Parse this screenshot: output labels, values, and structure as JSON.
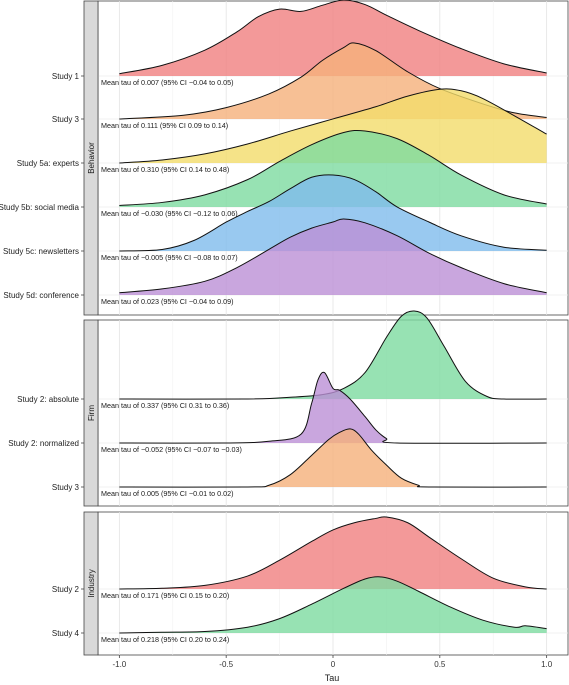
{
  "chart_data": {
    "type": "ridgeline",
    "xlabel": "Tau",
    "xlim": [
      -1.1,
      1.1
    ],
    "x_ticks": [
      "-1.0",
      "-0.5",
      "0",
      "0.5",
      "1.0"
    ],
    "x_tick_values": [
      -1.0,
      -0.5,
      0,
      0.5,
      1.0
    ],
    "grid": true,
    "colors": {
      "red": "#f08080",
      "orange": "#f5b07a",
      "yellow": "#f3dc6a",
      "green": "#7ddba0",
      "blue": "#7fbcec",
      "purple": "#bb90d6"
    },
    "panels": [
      {
        "strip": "Behavior",
        "rows": [
          {
            "label": "Study 1",
            "annotation": "Mean tau of 0.007 (95% CI −0.04 to 0.05)",
            "color": "red",
            "mean": 0.007,
            "density": [
              [
                -1.0,
                0.03
              ],
              [
                -0.8,
                0.14
              ],
              [
                -0.6,
                0.34
              ],
              [
                -0.45,
                0.58
              ],
              [
                -0.35,
                0.78
              ],
              [
                -0.25,
                0.88
              ],
              [
                -0.15,
                0.85
              ],
              [
                -0.05,
                0.93
              ],
              [
                0.05,
                1.0
              ],
              [
                0.15,
                0.94
              ],
              [
                0.25,
                0.8
              ],
              [
                0.4,
                0.6
              ],
              [
                0.6,
                0.36
              ],
              [
                0.8,
                0.16
              ],
              [
                1.0,
                0.04
              ]
            ]
          },
          {
            "label": "Study 3",
            "annotation": "Mean tau of 0.111 (95% CI 0.09 to 0.14)",
            "color": "orange",
            "mean": 0.111,
            "density": [
              [
                -1.0,
                0.0
              ],
              [
                -0.7,
                0.05
              ],
              [
                -0.5,
                0.15
              ],
              [
                -0.3,
                0.33
              ],
              [
                -0.15,
                0.55
              ],
              [
                -0.05,
                0.77
              ],
              [
                0.05,
                0.94
              ],
              [
                0.1,
                1.0
              ],
              [
                0.2,
                0.9
              ],
              [
                0.35,
                0.62
              ],
              [
                0.5,
                0.4
              ],
              [
                0.7,
                0.2
              ],
              [
                0.85,
                0.08
              ],
              [
                1.0,
                0.02
              ]
            ]
          },
          {
            "label": "Study 5a: experts",
            "annotation": "Mean tau of 0.310 (95% CI 0.14 to 0.48)",
            "color": "yellow",
            "mean": 0.31,
            "density": [
              [
                -1.0,
                0.0
              ],
              [
                -0.8,
                0.04
              ],
              [
                -0.6,
                0.12
              ],
              [
                -0.4,
                0.25
              ],
              [
                -0.2,
                0.42
              ],
              [
                0.0,
                0.58
              ],
              [
                0.2,
                0.74
              ],
              [
                0.35,
                0.88
              ],
              [
                0.5,
                0.97
              ],
              [
                0.6,
                0.95
              ],
              [
                0.7,
                0.85
              ],
              [
                0.85,
                0.62
              ],
              [
                1.0,
                0.38
              ]
            ]
          },
          {
            "label": "Study 5b: social media",
            "annotation": "Mean tau of −0.030 (95% CI −0.12 to 0.06)",
            "color": "green",
            "mean": -0.03,
            "density": [
              [
                -1.0,
                0.02
              ],
              [
                -0.8,
                0.06
              ],
              [
                -0.6,
                0.16
              ],
              [
                -0.4,
                0.36
              ],
              [
                -0.25,
                0.6
              ],
              [
                -0.1,
                0.82
              ],
              [
                0.05,
                0.98
              ],
              [
                0.15,
                1.0
              ],
              [
                0.3,
                0.9
              ],
              [
                0.45,
                0.68
              ],
              [
                0.6,
                0.42
              ],
              [
                0.8,
                0.16
              ],
              [
                1.0,
                0.04
              ]
            ]
          },
          {
            "label": "Study 5c: newsletters",
            "annotation": "Mean tau of −0.005 (95% CI −0.08 to 0.07)",
            "color": "blue",
            "mean": -0.005,
            "density": [
              [
                -1.0,
                0.0
              ],
              [
                -0.8,
                0.02
              ],
              [
                -0.65,
                0.14
              ],
              [
                -0.5,
                0.38
              ],
              [
                -0.4,
                0.52
              ],
              [
                -0.3,
                0.65
              ],
              [
                -0.2,
                0.82
              ],
              [
                -0.1,
                0.97
              ],
              [
                0.0,
                1.0
              ],
              [
                0.1,
                0.94
              ],
              [
                0.2,
                0.78
              ],
              [
                0.3,
                0.58
              ],
              [
                0.45,
                0.38
              ],
              [
                0.6,
                0.2
              ],
              [
                0.8,
                0.05
              ],
              [
                1.0,
                0.01
              ]
            ]
          },
          {
            "label": "Study 5d: conference",
            "annotation": "Mean tau of 0.023 (95% CI −0.04 to 0.09)",
            "color": "purple",
            "mean": 0.023,
            "density": [
              [
                -1.0,
                0.03
              ],
              [
                -0.8,
                0.08
              ],
              [
                -0.6,
                0.18
              ],
              [
                -0.45,
                0.36
              ],
              [
                -0.3,
                0.6
              ],
              [
                -0.2,
                0.76
              ],
              [
                -0.1,
                0.88
              ],
              [
                0.0,
                0.96
              ],
              [
                0.05,
                1.0
              ],
              [
                0.15,
                0.95
              ],
              [
                0.3,
                0.78
              ],
              [
                0.45,
                0.55
              ],
              [
                0.6,
                0.36
              ],
              [
                0.8,
                0.15
              ],
              [
                1.0,
                0.03
              ]
            ]
          }
        ]
      },
      {
        "strip": "Firm",
        "rows": [
          {
            "label": "Study 2: absolute",
            "annotation": "Mean tau of 0.337 (95% CI 0.31 to 0.36)",
            "color": "green",
            "mean": 0.337,
            "density": [
              [
                -1.0,
                0.0
              ],
              [
                -0.4,
                0.0
              ],
              [
                -0.2,
                0.02
              ],
              [
                -0.05,
                0.05
              ],
              [
                0.05,
                0.12
              ],
              [
                0.15,
                0.3
              ],
              [
                0.25,
                0.7
              ],
              [
                0.32,
                0.94
              ],
              [
                0.38,
                1.0
              ],
              [
                0.44,
                0.92
              ],
              [
                0.52,
                0.6
              ],
              [
                0.62,
                0.2
              ],
              [
                0.72,
                0.03
              ],
              [
                0.8,
                0.0
              ],
              [
                1.0,
                0.0
              ]
            ]
          },
          {
            "label": "Study 2: normalized",
            "annotation": "Mean tau of −0.052 (95% CI −0.07 to −0.03)",
            "color": "purple",
            "mean": -0.052,
            "density": [
              [
                -1.0,
                0.0
              ],
              [
                -0.5,
                0.0
              ],
              [
                -0.3,
                0.02
              ],
              [
                -0.15,
                0.1
              ],
              [
                -0.1,
                0.45
              ],
              [
                -0.07,
                0.72
              ],
              [
                -0.04,
                0.8
              ],
              [
                0.0,
                0.62
              ],
              [
                0.03,
                0.6
              ],
              [
                0.08,
                0.5
              ],
              [
                0.15,
                0.3
              ],
              [
                0.2,
                0.15
              ],
              [
                0.25,
                0.05
              ],
              [
                0.3,
                0.0
              ],
              [
                1.0,
                0.0
              ]
            ]
          },
          {
            "label": "Study 3",
            "annotation": "Mean tau of 0.005 (95% CI −0.01 to 0.02)",
            "color": "orange",
            "mean": 0.005,
            "density": [
              [
                -1.0,
                0.0
              ],
              [
                -0.4,
                0.0
              ],
              [
                -0.3,
                0.02
              ],
              [
                -0.2,
                0.14
              ],
              [
                -0.1,
                0.36
              ],
              [
                -0.02,
                0.54
              ],
              [
                0.03,
                0.62
              ],
              [
                0.08,
                0.66
              ],
              [
                0.12,
                0.6
              ],
              [
                0.18,
                0.42
              ],
              [
                0.25,
                0.25
              ],
              [
                0.32,
                0.1
              ],
              [
                0.4,
                0.02
              ],
              [
                0.45,
                0.0
              ],
              [
                1.0,
                0.0
              ]
            ]
          }
        ]
      },
      {
        "strip": "Industry",
        "rows": [
          {
            "label": "Study 2",
            "annotation": "Mean tau of 0.171 (95% CI 0.15 to 0.20)",
            "color": "red",
            "mean": 0.171,
            "density": [
              [
                -1.0,
                0.0
              ],
              [
                -0.8,
                0.01
              ],
              [
                -0.6,
                0.05
              ],
              [
                -0.4,
                0.18
              ],
              [
                -0.25,
                0.4
              ],
              [
                -0.1,
                0.66
              ],
              [
                0.0,
                0.82
              ],
              [
                0.1,
                0.92
              ],
              [
                0.2,
                0.98
              ],
              [
                0.25,
                1.0
              ],
              [
                0.35,
                0.92
              ],
              [
                0.45,
                0.72
              ],
              [
                0.6,
                0.42
              ],
              [
                0.75,
                0.15
              ],
              [
                0.9,
                0.03
              ],
              [
                1.0,
                0.0
              ]
            ]
          },
          {
            "label": "Study 4",
            "annotation": "Mean tau of 0.218 (95% CI 0.20 to 0.24)",
            "color": "green",
            "mean": 0.218,
            "density": [
              [
                -1.0,
                0.0
              ],
              [
                -0.8,
                0.01
              ],
              [
                -0.6,
                0.02
              ],
              [
                -0.4,
                0.08
              ],
              [
                -0.25,
                0.2
              ],
              [
                -0.1,
                0.4
              ],
              [
                0.05,
                0.62
              ],
              [
                0.15,
                0.75
              ],
              [
                0.22,
                0.78
              ],
              [
                0.3,
                0.72
              ],
              [
                0.4,
                0.58
              ],
              [
                0.55,
                0.36
              ],
              [
                0.7,
                0.18
              ],
              [
                0.85,
                0.08
              ],
              [
                0.9,
                0.1
              ],
              [
                1.0,
                0.06
              ]
            ]
          }
        ]
      }
    ]
  }
}
